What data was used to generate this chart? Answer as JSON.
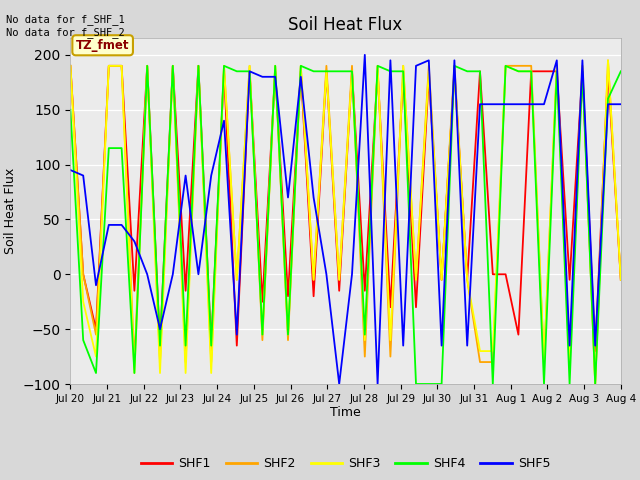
{
  "title": "Soil Heat Flux",
  "ylabel": "Soil Heat Flux",
  "xlabel": "Time",
  "ylim": [
    -100,
    215
  ],
  "yticks": [
    -100,
    -50,
    0,
    50,
    100,
    150,
    200
  ],
  "annotation_text": "No data for f_SHF_1\nNo data for f_SHF_2",
  "legend_box_text": "TZ_fmet",
  "fig_bg": "#d8d8d8",
  "plot_bg": "#ebebeb",
  "x_tick_labels": [
    "Jul 20",
    "Jul 21",
    "Jul 22",
    "Jul 23",
    "Jul 24",
    "Jul 25",
    "Jul 26",
    "Jul 27",
    "Jul 28",
    "Jul 29",
    "Jul 30",
    "Jul 31",
    "Aug 1",
    "Aug 2",
    "Aug 3",
    "Aug 4"
  ],
  "shf1": [
    190,
    0,
    -50,
    190,
    190,
    -15,
    190,
    -65,
    190,
    -15,
    190,
    -65,
    185,
    -65,
    185,
    -25,
    185,
    -20,
    185,
    -20,
    185,
    -15,
    185,
    -15,
    185,
    -30,
    180,
    -30,
    180,
    -5,
    185,
    -5,
    185,
    0,
    0,
    -55,
    185,
    185,
    185,
    -5,
    185,
    -70,
    185,
    -5
  ],
  "shf2": [
    190,
    0,
    -55,
    190,
    190,
    -80,
    190,
    -80,
    190,
    -80,
    190,
    -80,
    190,
    -5,
    190,
    -60,
    190,
    -60,
    190,
    -5,
    190,
    -5,
    190,
    -75,
    190,
    -75,
    190,
    -5,
    190,
    -5,
    190,
    -5,
    -80,
    -80,
    190,
    190,
    190,
    -80,
    190,
    -80,
    190,
    -100,
    195,
    -5
  ],
  "shf3": [
    190,
    -25,
    -75,
    190,
    190,
    -90,
    190,
    -90,
    190,
    -90,
    190,
    -90,
    190,
    -5,
    190,
    -55,
    190,
    -55,
    190,
    -5,
    185,
    -5,
    185,
    -60,
    190,
    -60,
    190,
    -5,
    185,
    -5,
    185,
    -5,
    -70,
    -70,
    190,
    185,
    185,
    -80,
    190,
    -80,
    190,
    -100,
    195,
    -5
  ],
  "shf4": [
    150,
    -60,
    -90,
    115,
    115,
    -90,
    190,
    -65,
    190,
    -65,
    190,
    -65,
    190,
    185,
    185,
    -55,
    190,
    -55,
    190,
    185,
    185,
    185,
    185,
    -55,
    190,
    185,
    185,
    -100,
    -100,
    -100,
    190,
    185,
    185,
    -100,
    190,
    185,
    185,
    -100,
    185,
    -100,
    185,
    -100,
    160,
    185
  ],
  "shf5": [
    95,
    90,
    -10,
    45,
    45,
    30,
    0,
    -50,
    0,
    90,
    0,
    90,
    140,
    -55,
    185,
    180,
    180,
    70,
    180,
    70,
    0,
    -100,
    0,
    200,
    -100,
    195,
    -65,
    190,
    195,
    -65,
    195,
    -65,
    155,
    155,
    155,
    155,
    155,
    155,
    195,
    -65,
    195,
    -65,
    155,
    155
  ]
}
